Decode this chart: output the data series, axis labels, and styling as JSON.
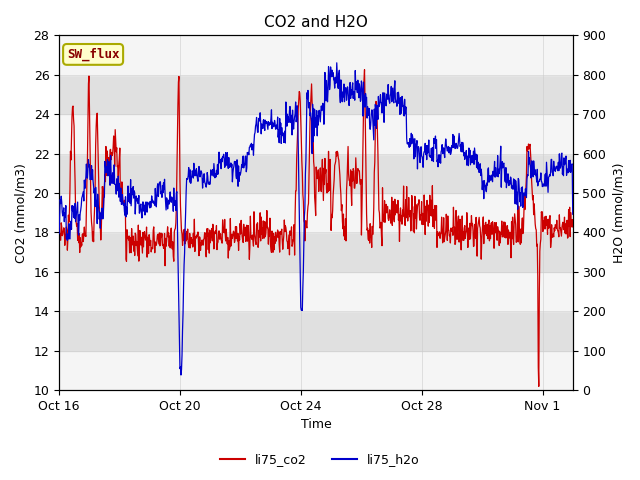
{
  "title": "CO2 and H2O",
  "xlabel": "Time",
  "ylabel_left": "CO2 (mmol/m3)",
  "ylabel_right": "H2O (mmol/m3)",
  "ylim_left": [
    10,
    28
  ],
  "ylim_right": [
    0,
    900
  ],
  "yticks_left": [
    10,
    12,
    14,
    16,
    18,
    20,
    22,
    24,
    26,
    28
  ],
  "yticks_right": [
    0,
    100,
    200,
    300,
    400,
    500,
    600,
    700,
    800,
    900
  ],
  "xtick_labels": [
    "Oct 16",
    "Oct 20",
    "Oct 24",
    "Oct 28",
    "Nov 1"
  ],
  "xtick_positions": [
    0,
    4,
    8,
    12,
    16
  ],
  "xlim": [
    0,
    17
  ],
  "color_co2": "#cc0000",
  "color_h2o": "#0000cc",
  "legend_co2": "li75_co2",
  "legend_h2o": "li75_h2o",
  "sw_flux_label": "SW_flux",
  "sw_flux_bg": "#ffffcc",
  "sw_flux_border": "#aaaa00",
  "sw_flux_text_color": "#880000",
  "background_color": "#ffffff",
  "stripe_light": "#f5f5f5",
  "stripe_dark": "#e0e0e0",
  "title_fontsize": 11,
  "axis_label_fontsize": 9,
  "tick_fontsize": 9,
  "legend_fontsize": 9,
  "linewidth": 0.9
}
